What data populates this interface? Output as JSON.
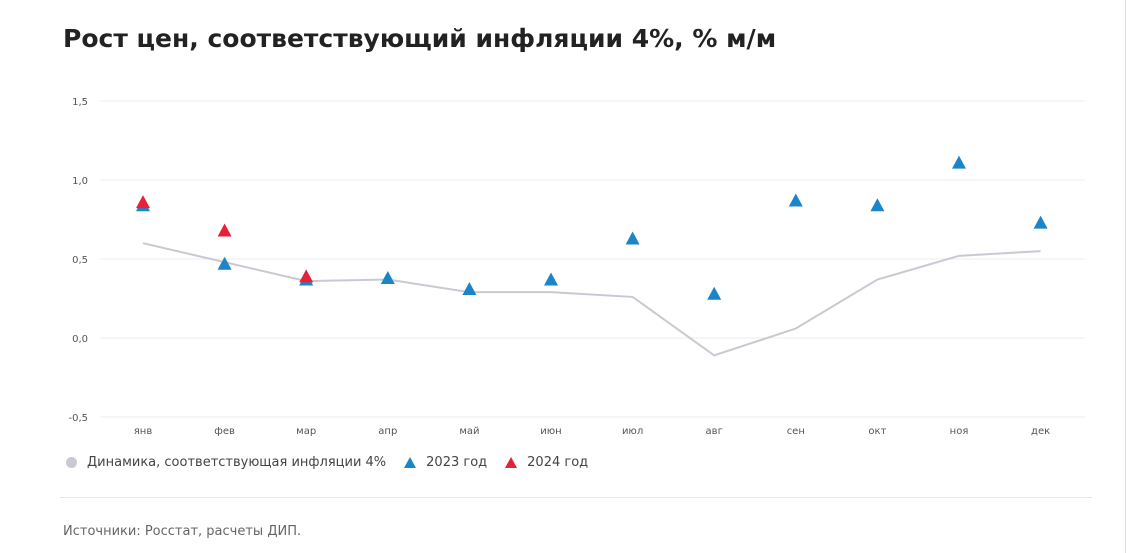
{
  "title": "Рост цен, соответствующий инфляции 4%, % м/м",
  "source": "Источники: Росстат, расчеты ДИП.",
  "chart_data": {
    "type": "line",
    "title": "Рост цен, соответствующий инфляции 4%, % м/м",
    "categories": [
      "янв",
      "фев",
      "мар",
      "апр",
      "май",
      "июн",
      "июл",
      "авг",
      "сен",
      "окт",
      "ноя",
      "дек"
    ],
    "ylim": [
      -0.5,
      1.5
    ],
    "yticks": [
      1.5,
      1.0,
      0.5,
      0.0,
      -0.5
    ],
    "ytick_labels": [
      "1,5",
      "1,0",
      "0,5",
      "0,0",
      "-0,5"
    ],
    "grid": true,
    "legend": "bottom-left",
    "series": [
      {
        "name": "Динамика, соответствующая инфляции 4%",
        "kind": "line",
        "color": "#c8c9d2",
        "values": [
          0.6,
          0.48,
          0.36,
          0.37,
          0.29,
          0.29,
          0.26,
          -0.11,
          0.06,
          0.37,
          0.52,
          0.55
        ]
      },
      {
        "name": "2023 год",
        "kind": "triangle",
        "color": "#1a86c8",
        "values": [
          0.84,
          0.47,
          0.37,
          0.38,
          0.31,
          0.37,
          0.63,
          0.28,
          0.87,
          0.84,
          1.11,
          0.73
        ]
      },
      {
        "name": "2024 год",
        "kind": "triangle",
        "color": "#e8213a",
        "values": [
          0.86,
          0.68,
          0.39,
          null,
          null,
          null,
          null,
          null,
          null,
          null,
          null,
          null
        ]
      }
    ]
  }
}
